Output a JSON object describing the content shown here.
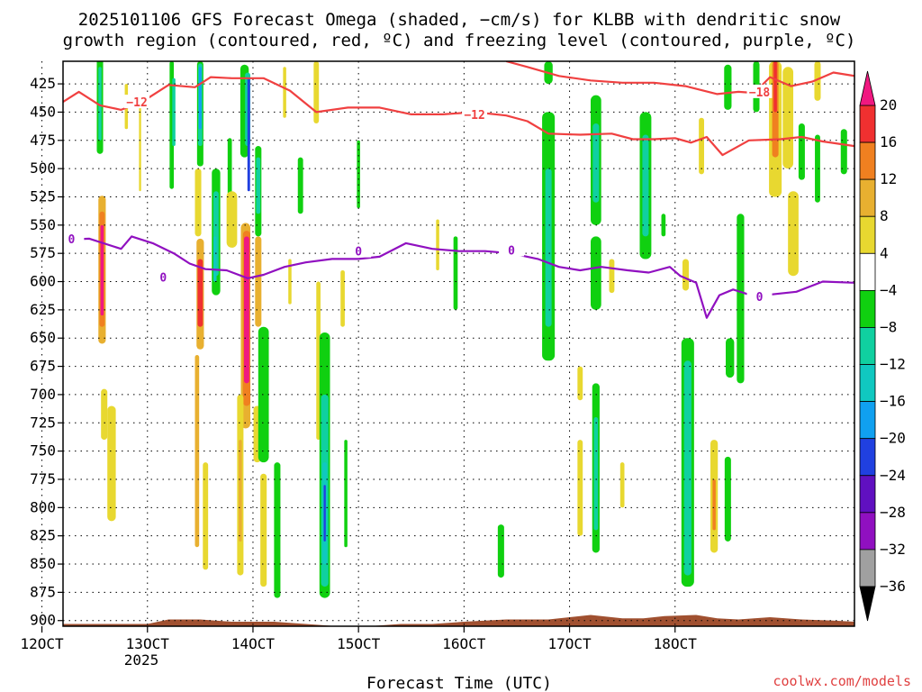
{
  "chart_data": {
    "type": "heatmap",
    "title_lines": [
      "2025101106 GFS Forecast Omega (shaded, −cm/s) for KLBB with dendritic snow",
      "growth region (contoured, red, ºC) and freezing level (contoured, purple, ºC)"
    ],
    "xlabel": "Forecast Time (UTC)",
    "credit": "coolwx.com/models",
    "x_range": [
      12.2,
      19.7
    ],
    "y_range": [
      905,
      405
    ],
    "y_ticks": [
      425,
      450,
      475,
      500,
      525,
      550,
      575,
      600,
      625,
      650,
      675,
      700,
      725,
      750,
      775,
      800,
      825,
      850,
      875,
      900
    ],
    "y_tick_labels": [
      "425",
      "450",
      "475",
      "500",
      "525",
      "550",
      "575",
      "600",
      "625",
      "650",
      "675",
      "700",
      "725",
      "750",
      "775",
      "800",
      "825",
      "850",
      "875",
      "900"
    ],
    "x_ticks": [
      12,
      13,
      14,
      15,
      16,
      17,
      18
    ],
    "x_tick_labels": [
      "12OCT",
      "13OCT",
      "14OCT",
      "15OCT",
      "16OCT",
      "17OCT",
      "18OCT"
    ],
    "x_year_label": "2025",
    "grid": true,
    "colorbar": {
      "levels": [
        -36,
        -32,
        -28,
        -24,
        -20,
        -16,
        -12,
        -8,
        -4,
        4,
        8,
        12,
        16,
        20
      ],
      "labels": [
        "20",
        "16",
        "12",
        "8",
        "4",
        "−4",
        "−8",
        "−12",
        "−16",
        "−20",
        "−24",
        "−28",
        "−32",
        "−36"
      ],
      "colors": [
        "#000000",
        "#a0a0a0",
        "#9010c0",
        "#6010c0",
        "#2040e0",
        "#10a0f0",
        "#10c8c0",
        "#10d0a0",
        "#10d010",
        "#ffffff",
        "#e8d830",
        "#e8b030",
        "#f08020",
        "#f03030",
        "#f01880"
      ]
    },
    "snow_growth_contours": [
      {
        "label": "−12",
        "color": "#f04040",
        "label_points": [
          [
            12.9,
            441
          ],
          [
            16.1,
            452
          ]
        ],
        "points": [
          [
            12.2,
            441
          ],
          [
            12.35,
            432
          ],
          [
            12.55,
            444
          ],
          [
            12.75,
            448
          ],
          [
            12.95,
            441
          ],
          [
            13.2,
            426
          ],
          [
            13.45,
            428
          ],
          [
            13.6,
            419
          ],
          [
            13.8,
            420
          ],
          [
            14.1,
            420
          ],
          [
            14.35,
            431
          ],
          [
            14.6,
            450
          ],
          [
            14.9,
            446
          ],
          [
            15.2,
            446
          ],
          [
            15.5,
            452
          ],
          [
            15.8,
            452
          ],
          [
            16.1,
            450
          ],
          [
            16.4,
            453
          ],
          [
            16.6,
            458
          ],
          [
            16.8,
            469
          ],
          [
            17.1,
            470
          ],
          [
            17.4,
            469
          ],
          [
            17.6,
            474
          ],
          [
            17.8,
            474
          ],
          [
            18.0,
            473
          ],
          [
            18.15,
            477
          ],
          [
            18.3,
            472
          ],
          [
            18.45,
            488
          ],
          [
            18.7,
            475
          ],
          [
            19.0,
            474
          ],
          [
            19.2,
            472
          ],
          [
            19.4,
            476
          ],
          [
            19.7,
            480
          ]
        ]
      },
      {
        "label": "−18",
        "color": "#f04040",
        "label_points": [
          [
            18.8,
            432
          ]
        ],
        "points": [
          [
            16.4,
            405
          ],
          [
            16.6,
            410
          ],
          [
            16.9,
            418
          ],
          [
            17.2,
            422
          ],
          [
            17.5,
            424
          ],
          [
            17.8,
            424
          ],
          [
            18.1,
            427
          ],
          [
            18.4,
            434
          ],
          [
            18.6,
            432
          ],
          [
            18.75,
            433
          ],
          [
            18.9,
            419
          ],
          [
            19.1,
            427
          ],
          [
            19.3,
            423
          ],
          [
            19.5,
            415
          ],
          [
            19.7,
            418
          ]
        ]
      }
    ],
    "freezing_level": {
      "label": "0",
      "color": "#9010c0",
      "label_points": [
        [
          12.28,
          562
        ],
        [
          13.15,
          596
        ],
        [
          15.0,
          573
        ],
        [
          16.45,
          572
        ],
        [
          18.8,
          613
        ]
      ],
      "points": [
        [
          12.2,
          563
        ],
        [
          12.45,
          562
        ],
        [
          12.75,
          571
        ],
        [
          12.85,
          560
        ],
        [
          13.05,
          566
        ],
        [
          13.25,
          575
        ],
        [
          13.4,
          584
        ],
        [
          13.55,
          589
        ],
        [
          13.75,
          590
        ],
        [
          13.95,
          597
        ],
        [
          14.1,
          594
        ],
        [
          14.3,
          587
        ],
        [
          14.5,
          583
        ],
        [
          14.75,
          580
        ],
        [
          15.0,
          580
        ],
        [
          15.2,
          578
        ],
        [
          15.45,
          566
        ],
        [
          15.7,
          571
        ],
        [
          15.95,
          573
        ],
        [
          16.2,
          573
        ],
        [
          16.45,
          575
        ],
        [
          16.7,
          580
        ],
        [
          16.9,
          587
        ],
        [
          17.1,
          590
        ],
        [
          17.3,
          587
        ],
        [
          17.55,
          590
        ],
        [
          17.75,
          592
        ],
        [
          17.95,
          587
        ],
        [
          18.05,
          595
        ],
        [
          18.2,
          601
        ],
        [
          18.3,
          632
        ],
        [
          18.42,
          612
        ],
        [
          18.55,
          607
        ],
        [
          18.75,
          613
        ],
        [
          18.95,
          611
        ],
        [
          19.15,
          609
        ],
        [
          19.4,
          600
        ],
        [
          19.7,
          601
        ]
      ]
    },
    "omega_patches": [
      {
        "x": 12.55,
        "w": 0.06,
        "y0": 403,
        "y1": 487,
        "level": -8
      },
      {
        "x": 12.55,
        "w": 0.03,
        "y0": 410,
        "y1": 475,
        "level": -12
      },
      {
        "x": 12.57,
        "w": 0.07,
        "y0": 524,
        "y1": 655,
        "level": 8
      },
      {
        "x": 12.57,
        "w": 0.05,
        "y0": 538,
        "y1": 640,
        "level": 12
      },
      {
        "x": 12.57,
        "w": 0.03,
        "y0": 550,
        "y1": 630,
        "level": 20
      },
      {
        "x": 12.59,
        "w": 0.06,
        "y0": 695,
        "y1": 740,
        "level": 4
      },
      {
        "x": 12.66,
        "w": 0.08,
        "y0": 710,
        "y1": 812,
        "level": 4
      },
      {
        "x": 12.8,
        "w": 0.03,
        "y0": 425,
        "y1": 465,
        "level": 4
      },
      {
        "x": 12.93,
        "w": 0.02,
        "y0": 440,
        "y1": 520,
        "level": 4
      },
      {
        "x": 13.23,
        "w": 0.04,
        "y0": 405,
        "y1": 518,
        "level": -8
      },
      {
        "x": 13.25,
        "w": 0.03,
        "y0": 420,
        "y1": 480,
        "level": -12
      },
      {
        "x": 13.5,
        "w": 0.06,
        "y0": 405,
        "y1": 498,
        "level": -8
      },
      {
        "x": 13.5,
        "w": 0.04,
        "y0": 407,
        "y1": 480,
        "level": -12
      },
      {
        "x": 13.5,
        "w": 0.025,
        "y0": 410,
        "y1": 465,
        "level": -20
      },
      {
        "x": 13.48,
        "w": 0.06,
        "y0": 500,
        "y1": 560,
        "level": 4
      },
      {
        "x": 13.5,
        "w": 0.07,
        "y0": 562,
        "y1": 660,
        "level": 8
      },
      {
        "x": 13.5,
        "w": 0.05,
        "y0": 580,
        "y1": 640,
        "level": 16
      },
      {
        "x": 13.47,
        "w": 0.04,
        "y0": 665,
        "y1": 835,
        "level": 8
      },
      {
        "x": 13.55,
        "w": 0.05,
        "y0": 760,
        "y1": 855,
        "level": 4
      },
      {
        "x": 13.65,
        "w": 0.08,
        "y0": 500,
        "y1": 612,
        "level": -8
      },
      {
        "x": 13.65,
        "w": 0.05,
        "y0": 520,
        "y1": 595,
        "level": -12
      },
      {
        "x": 13.64,
        "w": 0.03,
        "y0": 560,
        "y1": 600,
        "level": -16
      },
      {
        "x": 13.78,
        "w": 0.04,
        "y0": 473,
        "y1": 530,
        "level": -8
      },
      {
        "x": 13.92,
        "w": 0.08,
        "y0": 408,
        "y1": 490,
        "level": -8
      },
      {
        "x": 13.95,
        "w": 0.05,
        "y0": 415,
        "y1": 480,
        "level": -12
      },
      {
        "x": 13.96,
        "w": 0.025,
        "y0": 420,
        "y1": 520,
        "level": -24
      },
      {
        "x": 14.05,
        "w": 0.06,
        "y0": 480,
        "y1": 560,
        "level": -8
      },
      {
        "x": 14.05,
        "w": 0.04,
        "y0": 490,
        "y1": 540,
        "level": -12
      },
      {
        "x": 13.8,
        "w": 0.1,
        "y0": 520,
        "y1": 570,
        "level": 4
      },
      {
        "x": 13.93,
        "w": 0.09,
        "y0": 548,
        "y1": 730,
        "level": 8
      },
      {
        "x": 13.94,
        "w": 0.07,
        "y0": 555,
        "y1": 710,
        "level": 12
      },
      {
        "x": 13.94,
        "w": 0.05,
        "y0": 560,
        "y1": 690,
        "level": 20
      },
      {
        "x": 14.05,
        "w": 0.06,
        "y0": 560,
        "y1": 640,
        "level": 8
      },
      {
        "x": 13.88,
        "w": 0.06,
        "y0": 700,
        "y1": 860,
        "level": 4
      },
      {
        "x": 13.88,
        "w": 0.03,
        "y0": 740,
        "y1": 830,
        "level": 8
      },
      {
        "x": 14.04,
        "w": 0.07,
        "y0": 710,
        "y1": 760,
        "level": 4
      },
      {
        "x": 14.1,
        "w": 0.1,
        "y0": 640,
        "y1": 760,
        "level": -8
      },
      {
        "x": 14.1,
        "w": 0.06,
        "y0": 770,
        "y1": 870,
        "level": 4
      },
      {
        "x": 14.23,
        "w": 0.06,
        "y0": 760,
        "y1": 880,
        "level": -8
      },
      {
        "x": 14.3,
        "w": 0.03,
        "y0": 410,
        "y1": 455,
        "level": 4
      },
      {
        "x": 14.35,
        "w": 0.03,
        "y0": 580,
        "y1": 620,
        "level": 4
      },
      {
        "x": 14.45,
        "w": 0.05,
        "y0": 490,
        "y1": 540,
        "level": -8
      },
      {
        "x": 14.6,
        "w": 0.05,
        "y0": 405,
        "y1": 460,
        "level": 4
      },
      {
        "x": 14.62,
        "w": 0.04,
        "y0": 600,
        "y1": 740,
        "level": 4
      },
      {
        "x": 14.68,
        "w": 0.1,
        "y0": 645,
        "y1": 880,
        "level": -8
      },
      {
        "x": 14.68,
        "w": 0.07,
        "y0": 700,
        "y1": 870,
        "level": -12
      },
      {
        "x": 14.68,
        "w": 0.04,
        "y0": 760,
        "y1": 850,
        "level": -16
      },
      {
        "x": 14.68,
        "w": 0.02,
        "y0": 780,
        "y1": 830,
        "level": -24
      },
      {
        "x": 14.88,
        "w": 0.03,
        "y0": 740,
        "y1": 835,
        "level": -8
      },
      {
        "x": 14.85,
        "w": 0.04,
        "y0": 590,
        "y1": 640,
        "level": 4
      },
      {
        "x": 15.0,
        "w": 0.03,
        "y0": 475,
        "y1": 535,
        "level": -8
      },
      {
        "x": 15.75,
        "w": 0.03,
        "y0": 545,
        "y1": 590,
        "level": 4
      },
      {
        "x": 15.92,
        "w": 0.04,
        "y0": 560,
        "y1": 625,
        "level": -8
      },
      {
        "x": 16.35,
        "w": 0.06,
        "y0": 815,
        "y1": 862,
        "level": -8
      },
      {
        "x": 16.8,
        "w": 0.08,
        "y0": 405,
        "y1": 425,
        "level": -8
      },
      {
        "x": 16.8,
        "w": 0.12,
        "y0": 450,
        "y1": 670,
        "level": -8
      },
      {
        "x": 16.8,
        "w": 0.06,
        "y0": 500,
        "y1": 640,
        "level": -12
      },
      {
        "x": 17.25,
        "w": 0.1,
        "y0": 435,
        "y1": 550,
        "level": -8
      },
      {
        "x": 17.25,
        "w": 0.06,
        "y0": 460,
        "y1": 530,
        "level": -12
      },
      {
        "x": 17.25,
        "w": 0.1,
        "y0": 560,
        "y1": 625,
        "level": -8
      },
      {
        "x": 17.1,
        "w": 0.05,
        "y0": 675,
        "y1": 705,
        "level": 4
      },
      {
        "x": 17.1,
        "w": 0.05,
        "y0": 740,
        "y1": 825,
        "level": 4
      },
      {
        "x": 17.25,
        "w": 0.07,
        "y0": 690,
        "y1": 840,
        "level": -8
      },
      {
        "x": 17.25,
        "w": 0.04,
        "y0": 720,
        "y1": 820,
        "level": -12
      },
      {
        "x": 17.4,
        "w": 0.05,
        "y0": 580,
        "y1": 610,
        "level": 4
      },
      {
        "x": 17.5,
        "w": 0.04,
        "y0": 760,
        "y1": 800,
        "level": 4
      },
      {
        "x": 17.72,
        "w": 0.11,
        "y0": 450,
        "y1": 580,
        "level": -8
      },
      {
        "x": 17.72,
        "w": 0.06,
        "y0": 470,
        "y1": 560,
        "level": -12
      },
      {
        "x": 17.89,
        "w": 0.04,
        "y0": 540,
        "y1": 560,
        "level": -8
      },
      {
        "x": 18.12,
        "w": 0.12,
        "y0": 650,
        "y1": 870,
        "level": -8
      },
      {
        "x": 18.12,
        "w": 0.07,
        "y0": 670,
        "y1": 860,
        "level": -12
      },
      {
        "x": 18.1,
        "w": 0.06,
        "y0": 580,
        "y1": 608,
        "level": 4
      },
      {
        "x": 18.25,
        "w": 0.05,
        "y0": 455,
        "y1": 505,
        "level": 4
      },
      {
        "x": 18.37,
        "w": 0.07,
        "y0": 740,
        "y1": 840,
        "level": 4
      },
      {
        "x": 18.37,
        "w": 0.03,
        "y0": 775,
        "y1": 820,
        "level": 12
      },
      {
        "x": 18.5,
        "w": 0.07,
        "y0": 408,
        "y1": 448,
        "level": -8
      },
      {
        "x": 18.52,
        "w": 0.08,
        "y0": 650,
        "y1": 685,
        "level": -8
      },
      {
        "x": 18.5,
        "w": 0.06,
        "y0": 755,
        "y1": 830,
        "level": -8
      },
      {
        "x": 18.62,
        "w": 0.07,
        "y0": 540,
        "y1": 690,
        "level": -8
      },
      {
        "x": 18.77,
        "w": 0.06,
        "y0": 405,
        "y1": 450,
        "level": -8
      },
      {
        "x": 18.95,
        "w": 0.12,
        "y0": 405,
        "y1": 525,
        "level": 4
      },
      {
        "x": 18.95,
        "w": 0.06,
        "y0": 405,
        "y1": 490,
        "level": 12
      },
      {
        "x": 18.95,
        "w": 0.03,
        "y0": 405,
        "y1": 450,
        "level": 16
      },
      {
        "x": 19.12,
        "w": 0.1,
        "y0": 520,
        "y1": 595,
        "level": 4
      },
      {
        "x": 19.07,
        "w": 0.1,
        "y0": 410,
        "y1": 500,
        "level": 4
      },
      {
        "x": 19.35,
        "w": 0.06,
        "y0": 405,
        "y1": 440,
        "level": 4
      },
      {
        "x": 19.2,
        "w": 0.06,
        "y0": 460,
        "y1": 510,
        "level": -8
      },
      {
        "x": 19.35,
        "w": 0.05,
        "y0": 470,
        "y1": 530,
        "level": -8
      },
      {
        "x": 19.6,
        "w": 0.06,
        "y0": 465,
        "y1": 505,
        "level": -8
      }
    ],
    "terrain_color": "#a05030",
    "terrain_points": [
      [
        12.2,
        903
      ],
      [
        13.0,
        903
      ],
      [
        13.2,
        899
      ],
      [
        13.5,
        899
      ],
      [
        13.8,
        901
      ],
      [
        14.2,
        901
      ],
      [
        14.5,
        903
      ],
      [
        14.8,
        905
      ],
      [
        15.1,
        905
      ],
      [
        15.4,
        903
      ],
      [
        15.7,
        903
      ],
      [
        16.0,
        901
      ],
      [
        16.4,
        899
      ],
      [
        16.8,
        899
      ],
      [
        17.0,
        897
      ],
      [
        17.2,
        895
      ],
      [
        17.5,
        898
      ],
      [
        17.7,
        898
      ],
      [
        17.9,
        896
      ],
      [
        18.2,
        895
      ],
      [
        18.4,
        898
      ],
      [
        18.6,
        899
      ],
      [
        18.9,
        897
      ],
      [
        19.2,
        899
      ],
      [
        19.5,
        900
      ],
      [
        19.7,
        901
      ]
    ]
  }
}
